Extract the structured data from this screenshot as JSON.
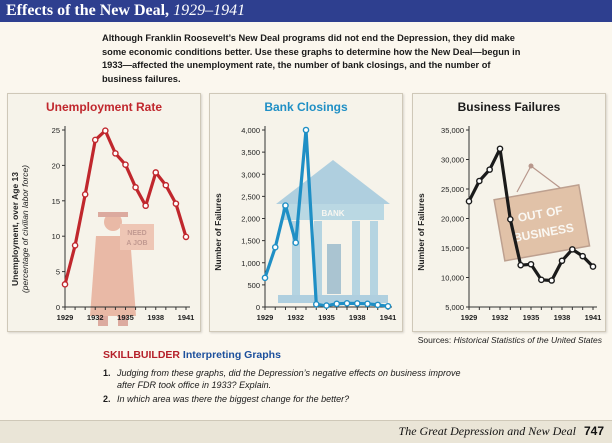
{
  "header": {
    "title": "Effects of the New Deal,",
    "years": "1929–1941"
  },
  "intro": "Although Franklin Roosevelt’s New Deal programs did not end the Depression, they did make some economic conditions better. Use these graphs to determine how the New Deal—begun in 1933—affected the unemployment rate, the number of bank closings, and the number of business failures.",
  "sources": {
    "label": "Sources:",
    "source": "Historical Statistics of the United States"
  },
  "skillbuilder": {
    "label": "SKILLBUILDER",
    "title": "Interpreting Graphs",
    "questions": [
      {
        "num": "1.",
        "line1": "Judging from these graphs, did the Depression’s negative effects on business improve",
        "line2": "after FDR took office in 1933? Explain."
      },
      {
        "num": "2.",
        "line1": "In which area was there the biggest change for the better?"
      }
    ]
  },
  "footer": {
    "text": "The Great Depression and New Deal",
    "page": "747"
  },
  "colors": {
    "unemployment": "#c0272d",
    "banks": "#1f8fc5",
    "business": "#1a1a1a",
    "header": "#2e3f8f"
  },
  "illustrations": {
    "unemployment": {
      "sign_lines": [
        "NEED",
        "A JOB"
      ]
    },
    "banks": {
      "sign": "BANK"
    },
    "business": {
      "sign_lines": [
        "OUT OF",
        "BUSINESS"
      ]
    }
  },
  "chart_data": [
    {
      "type": "line",
      "title": "Unemployment Rate",
      "ylabel": "Unemployment, over Age 13",
      "ylabel2": "(percentage of civilian labor force)",
      "ylim": [
        0,
        25
      ],
      "yticks": [
        0,
        5,
        10,
        15,
        20,
        25
      ],
      "xticks": [
        1929,
        1932,
        1935,
        1938,
        1941
      ],
      "x": [
        1929,
        1930,
        1931,
        1932,
        1933,
        1934,
        1935,
        1936,
        1937,
        1938,
        1939,
        1940,
        1941
      ],
      "values": [
        3.2,
        8.7,
        15.9,
        23.6,
        24.9,
        21.7,
        20.1,
        16.9,
        14.3,
        19.0,
        17.2,
        14.6,
        9.9
      ],
      "grid": false
    },
    {
      "type": "line",
      "title": "Bank Closings",
      "ylabel": "Number of Failures",
      "ylim": [
        0,
        4000
      ],
      "yticks": [
        0,
        500,
        1000,
        1500,
        2000,
        2500,
        3000,
        3500,
        4000
      ],
      "ytick_labels": [
        "0",
        "500",
        "1,000",
        "1,500",
        "2,000",
        "2,500",
        "3,000",
        "3,500",
        "4,000"
      ],
      "xticks": [
        1929,
        1932,
        1935,
        1938,
        1941
      ],
      "x": [
        1929,
        1930,
        1931,
        1932,
        1933,
        1934,
        1935,
        1936,
        1937,
        1938,
        1939,
        1940,
        1941
      ],
      "values": [
        659,
        1350,
        2293,
        1453,
        4000,
        61,
        32,
        72,
        83,
        80,
        72,
        48,
        17
      ],
      "grid": false
    },
    {
      "type": "line",
      "title": "Business Failures",
      "ylabel": "Number of Failures",
      "ylim": [
        5000,
        35000
      ],
      "yticks": [
        5000,
        10000,
        15000,
        20000,
        25000,
        30000,
        35000
      ],
      "ytick_labels": [
        "5,000",
        "10,000",
        "15,000",
        "20,000",
        "25,000",
        "30,000",
        "35,000"
      ],
      "xticks": [
        1929,
        1932,
        1935,
        1938,
        1941
      ],
      "x": [
        1929,
        1930,
        1931,
        1932,
        1933,
        1934,
        1935,
        1936,
        1937,
        1938,
        1939,
        1940,
        1941
      ],
      "values": [
        22909,
        26355,
        28285,
        31822,
        19859,
        12091,
        12244,
        9607,
        9490,
        12836,
        14768,
        13619,
        11848
      ],
      "grid": false
    }
  ]
}
